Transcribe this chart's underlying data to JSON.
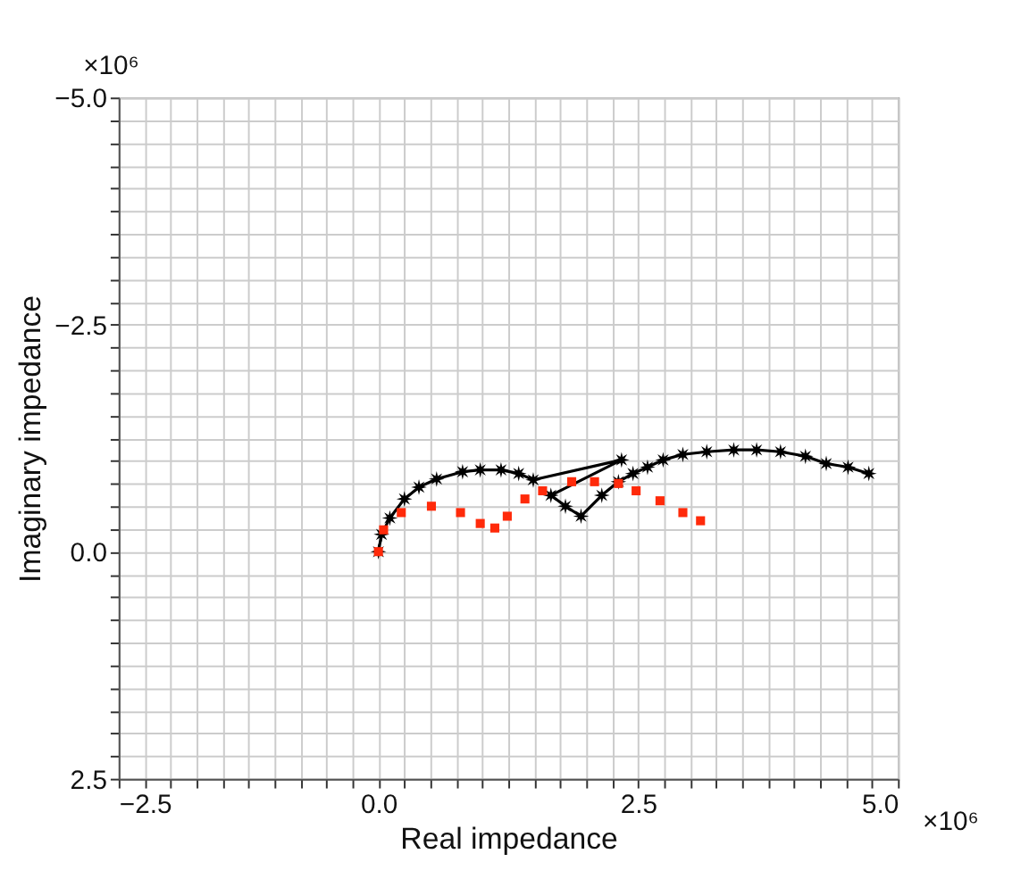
{
  "chart_data": {
    "type": "scatter",
    "xlabel": "Real impedance",
    "ylabel": "Imaginary impedance",
    "xlim": [
      -2.5,
      5.0
    ],
    "ylim": [
      2.5,
      -5.0
    ],
    "xticks": [
      {
        "value": -2.5,
        "label": "−2.5"
      },
      {
        "value": -2.25,
        "label": null
      },
      {
        "value": -2.0,
        "label": null
      },
      {
        "value": -1.75,
        "label": null
      },
      {
        "value": -1.5,
        "label": null
      },
      {
        "value": -1.25,
        "label": null
      },
      {
        "value": -1.0,
        "label": null
      },
      {
        "value": -0.75,
        "label": null
      },
      {
        "value": -0.5,
        "label": null
      },
      {
        "value": -0.25,
        "label": null
      },
      {
        "value": 0,
        "label": "0.0"
      },
      {
        "value": 0.25,
        "label": null
      },
      {
        "value": 0.5,
        "label": null
      },
      {
        "value": 0.75,
        "label": null
      },
      {
        "value": 1.0,
        "label": null
      },
      {
        "value": 1.25,
        "label": null
      },
      {
        "value": 1.5,
        "label": null
      },
      {
        "value": 1.75,
        "label": null
      },
      {
        "value": 2.0,
        "label": null
      },
      {
        "value": 2.25,
        "label": null
      },
      {
        "value": 2.5,
        "label": "2.5"
      },
      {
        "value": 2.75,
        "label": null
      },
      {
        "value": 3.0,
        "label": null
      },
      {
        "value": 3.25,
        "label": null
      },
      {
        "value": 3.5,
        "label": null
      },
      {
        "value": 3.75,
        "label": null
      },
      {
        "value": 4.0,
        "label": null
      },
      {
        "value": 4.25,
        "label": null
      },
      {
        "value": 4.5,
        "label": null
      },
      {
        "value": 4.75,
        "label": null
      },
      {
        "value": 5.0,
        "label": "5.0"
      }
    ],
    "yticks": [
      {
        "value": -5.0,
        "label": "−5.0"
      },
      {
        "value": -4.75,
        "label": null
      },
      {
        "value": -4.5,
        "label": null
      },
      {
        "value": -4.25,
        "label": null
      },
      {
        "value": -4.0,
        "label": null
      },
      {
        "value": -3.75,
        "label": null
      },
      {
        "value": -3.5,
        "label": null
      },
      {
        "value": -3.25,
        "label": null
      },
      {
        "value": -3.0,
        "label": null
      },
      {
        "value": -2.75,
        "label": null
      },
      {
        "value": -2.5,
        "label": "−2.5"
      },
      {
        "value": -2.25,
        "label": null
      },
      {
        "value": -2.0,
        "label": null
      },
      {
        "value": -1.75,
        "label": null
      },
      {
        "value": -1.5,
        "label": null
      },
      {
        "value": -1.25,
        "label": null
      },
      {
        "value": -1.0,
        "label": null
      },
      {
        "value": -0.75,
        "label": null
      },
      {
        "value": -0.5,
        "label": null
      },
      {
        "value": -0.25,
        "label": null
      },
      {
        "value": 0,
        "label": "0.0"
      },
      {
        "value": 0.25,
        "label": null
      },
      {
        "value": 0.5,
        "label": null
      },
      {
        "value": 0.75,
        "label": null
      },
      {
        "value": 1.0,
        "label": null
      },
      {
        "value": 1.25,
        "label": null
      },
      {
        "value": 1.5,
        "label": null
      },
      {
        "value": 1.75,
        "label": null
      },
      {
        "value": 2.0,
        "label": null
      },
      {
        "value": 2.25,
        "label": null
      },
      {
        "value": 2.5,
        "label": "2.5"
      }
    ],
    "grid": true,
    "annotations": [
      "×10⁶",
      "×10⁶"
    ],
    "series": [
      {
        "marker": "square",
        "color": "#ff2a0a",
        "x": [
          0,
          0.05,
          0.22,
          0.51,
          0.79,
          0.98,
          1.12,
          1.24,
          1.41,
          1.58,
          1.86,
          2.08,
          2.31,
          2.48,
          2.71,
          2.93,
          3.1
        ],
        "values": [
          0,
          -0.24,
          -0.43,
          -0.5,
          -0.43,
          -0.31,
          -0.26,
          -0.39,
          -0.58,
          -0.67,
          -0.77,
          -0.77,
          -0.75,
          -0.67,
          -0.56,
          -0.43,
          -0.34
        ]
      },
      {
        "type": "line",
        "marker": "star",
        "line_style": "solid",
        "color": "#000000",
        "x": [
          0,
          0.03,
          0.11,
          0.25,
          0.39,
          0.56,
          0.81,
          0.98,
          1.18,
          1.35,
          1.49,
          2.34,
          1.66,
          1.8,
          1.95,
          2.15,
          2.31,
          2.45,
          2.59,
          2.74,
          2.93,
          3.16,
          3.42,
          3.64,
          3.87,
          4.11,
          4.31,
          4.52,
          4.72
        ],
        "values": [
          0,
          -0.19,
          -0.37,
          -0.58,
          -0.71,
          -0.8,
          -0.88,
          -0.9,
          -0.9,
          -0.86,
          -0.79,
          -1.01,
          -0.62,
          -0.5,
          -0.39,
          -0.62,
          -0.77,
          -0.86,
          -0.93,
          -1.01,
          -1.07,
          -1.1,
          -1.12,
          -1.12,
          -1.1,
          -1.05,
          -0.97,
          -0.93,
          -0.86
        ]
      }
    ]
  }
}
